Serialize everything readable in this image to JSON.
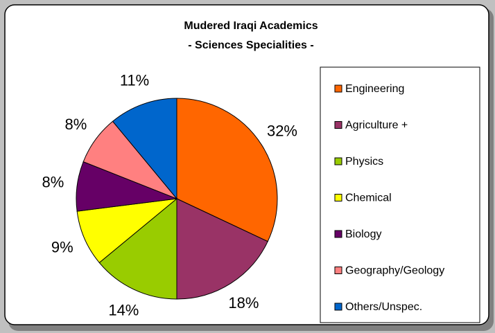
{
  "chart_data": {
    "type": "pie",
    "title": "Mudered Iraqi Academics",
    "subtitle": "- Sciences Specialities -",
    "categories": [
      "Engineering",
      "Agriculture +",
      "Physics",
      "Chemical",
      "Biology",
      "Geography/Geology",
      "Others/Unspec."
    ],
    "values": [
      32,
      18,
      14,
      9,
      8,
      8,
      11
    ],
    "value_labels": [
      "32%",
      "18%",
      "14%",
      "9%",
      "8%",
      "8%",
      "11%"
    ],
    "colors": [
      "#ff6600",
      "#993366",
      "#99cc00",
      "#ffff00",
      "#660066",
      "#ff8080",
      "#0066cc"
    ],
    "legend": "right"
  }
}
